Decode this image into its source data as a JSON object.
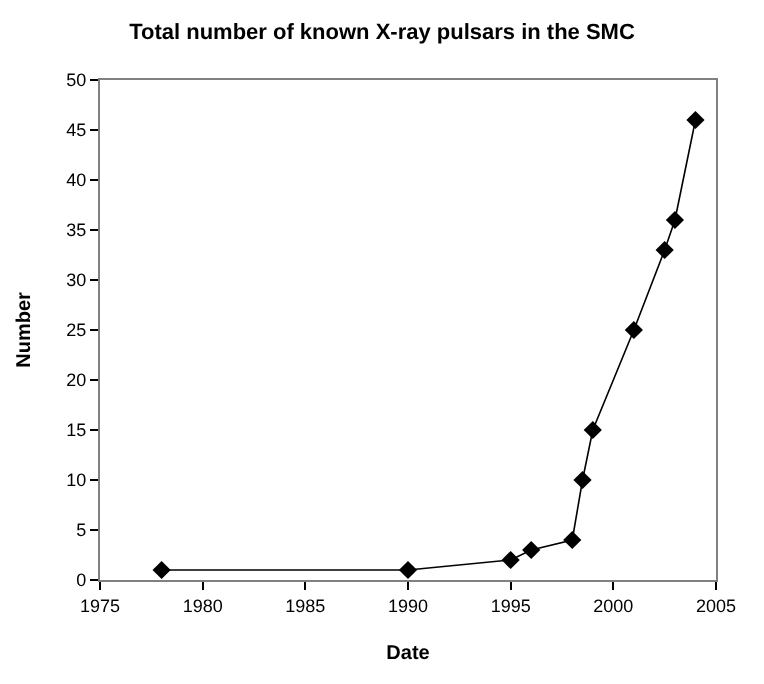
{
  "chart_data": {
    "type": "line",
    "title": "Total number of known X-ray pulsars in the SMC",
    "xlabel": "Date",
    "ylabel": "Number",
    "x": [
      1978,
      1990,
      1995,
      1996,
      1998,
      1998.5,
      1999,
      2001,
      2002.5,
      2003,
      2004
    ],
    "series": [
      {
        "color": "#000000",
        "values": [
          1,
          1,
          2,
          3,
          4,
          10,
          15,
          25,
          33,
          36,
          46
        ]
      }
    ],
    "xlim": [
      1975,
      2005
    ],
    "xticks": [
      1975,
      1980,
      1985,
      1990,
      1995,
      2000,
      2005
    ],
    "ylim": [
      0,
      50
    ],
    "yticks": [
      0,
      5,
      10,
      15,
      20,
      25,
      30,
      35,
      40,
      45,
      50
    ],
    "grid": false,
    "legend": false,
    "marker": "diamond",
    "line_style": "solid"
  }
}
